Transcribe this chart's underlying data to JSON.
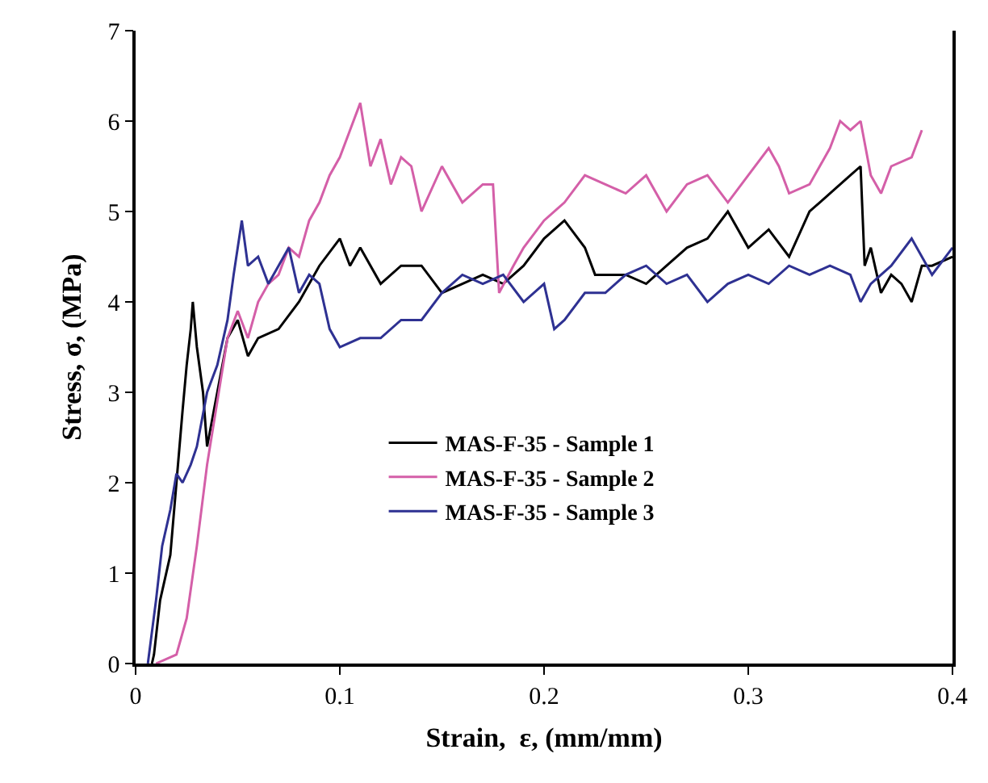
{
  "chart_data": {
    "type": "line",
    "xlabel": "Strain,  ε, (mm/mm)",
    "ylabel": "Stress, σ, (MPa)",
    "xlim": [
      0,
      0.4
    ],
    "xticks": [
      0,
      0.1,
      0.2,
      0.3,
      0.4
    ],
    "ylim": [
      0,
      7
    ],
    "yticks": [
      0,
      1,
      2,
      3,
      4,
      5,
      6,
      7
    ],
    "grid": false,
    "legend": "bottom left",
    "marker": "none",
    "line_style": "solid",
    "series": [
      {
        "name": "MAS-F-35 - Sample 1",
        "color": "#000000",
        "x": [
          0.008,
          0.009,
          0.012,
          0.017,
          0.02,
          0.023,
          0.025,
          0.027,
          0.028,
          0.03,
          0.033,
          0.035,
          0.04,
          0.045,
          0.05,
          0.055,
          0.06,
          0.07,
          0.08,
          0.09,
          0.1,
          0.105,
          0.11,
          0.12,
          0.13,
          0.14,
          0.15,
          0.16,
          0.17,
          0.18,
          0.19,
          0.2,
          0.21,
          0.22,
          0.225,
          0.24,
          0.25,
          0.26,
          0.27,
          0.28,
          0.29,
          0.3,
          0.31,
          0.32,
          0.33,
          0.34,
          0.35,
          0.355,
          0.357,
          0.36,
          0.365,
          0.37,
          0.375,
          0.38,
          0.385,
          0.39,
          0.4
        ],
        "values": [
          0,
          0.1,
          0.7,
          1.2,
          2.0,
          2.8,
          3.3,
          3.7,
          4.0,
          3.5,
          3.0,
          2.4,
          3.0,
          3.6,
          3.8,
          3.4,
          3.6,
          3.7,
          4.0,
          4.4,
          4.7,
          4.4,
          4.6,
          4.2,
          4.4,
          4.4,
          4.1,
          4.2,
          4.3,
          4.2,
          4.4,
          4.7,
          4.9,
          4.6,
          4.3,
          4.3,
          4.2,
          4.4,
          4.6,
          4.7,
          5.0,
          4.6,
          4.8,
          4.5,
          5.0,
          5.2,
          5.4,
          5.5,
          4.4,
          4.6,
          4.1,
          4.3,
          4.2,
          4.0,
          4.4,
          4.4,
          4.5
        ]
      },
      {
        "name": "MAS-F-35 - Sample 2",
        "color": "#d45fa8",
        "x": [
          0.01,
          0.02,
          0.025,
          0.03,
          0.035,
          0.04,
          0.045,
          0.05,
          0.055,
          0.06,
          0.065,
          0.07,
          0.075,
          0.08,
          0.085,
          0.09,
          0.095,
          0.1,
          0.105,
          0.11,
          0.115,
          0.12,
          0.125,
          0.13,
          0.135,
          0.14,
          0.15,
          0.16,
          0.17,
          0.175,
          0.178,
          0.185,
          0.19,
          0.2,
          0.21,
          0.22,
          0.23,
          0.24,
          0.25,
          0.26,
          0.27,
          0.28,
          0.29,
          0.3,
          0.31,
          0.315,
          0.32,
          0.33,
          0.34,
          0.345,
          0.35,
          0.355,
          0.36,
          0.365,
          0.37,
          0.38,
          0.385
        ],
        "values": [
          0,
          0.1,
          0.5,
          1.3,
          2.2,
          2.9,
          3.6,
          3.9,
          3.6,
          4.0,
          4.2,
          4.3,
          4.6,
          4.5,
          4.9,
          5.1,
          5.4,
          5.6,
          5.9,
          6.2,
          5.5,
          5.8,
          5.3,
          5.6,
          5.5,
          5.0,
          5.5,
          5.1,
          5.3,
          5.3,
          4.1,
          4.4,
          4.6,
          4.9,
          5.1,
          5.4,
          5.3,
          5.2,
          5.4,
          5.0,
          5.3,
          5.4,
          5.1,
          5.4,
          5.7,
          5.5,
          5.2,
          5.3,
          5.7,
          6.0,
          5.9,
          6.0,
          5.4,
          5.2,
          5.5,
          5.6,
          5.9
        ]
      },
      {
        "name": "MAS-F-35 - Sample 3",
        "color": "#2e3192",
        "x": [
          0.006,
          0.01,
          0.013,
          0.017,
          0.02,
          0.023,
          0.027,
          0.03,
          0.035,
          0.04,
          0.045,
          0.048,
          0.052,
          0.055,
          0.06,
          0.065,
          0.07,
          0.075,
          0.08,
          0.085,
          0.09,
          0.095,
          0.1,
          0.11,
          0.12,
          0.13,
          0.14,
          0.15,
          0.16,
          0.17,
          0.18,
          0.19,
          0.2,
          0.205,
          0.21,
          0.22,
          0.23,
          0.24,
          0.25,
          0.26,
          0.27,
          0.28,
          0.29,
          0.3,
          0.31,
          0.32,
          0.33,
          0.34,
          0.35,
          0.355,
          0.36,
          0.37,
          0.38,
          0.385,
          0.39,
          0.4
        ],
        "values": [
          0,
          0.7,
          1.3,
          1.7,
          2.1,
          2.0,
          2.2,
          2.4,
          3.0,
          3.3,
          3.8,
          4.3,
          4.9,
          4.4,
          4.5,
          4.2,
          4.4,
          4.6,
          4.1,
          4.3,
          4.2,
          3.7,
          3.5,
          3.6,
          3.6,
          3.8,
          3.8,
          4.1,
          4.3,
          4.2,
          4.3,
          4.0,
          4.2,
          3.7,
          3.8,
          4.1,
          4.1,
          4.3,
          4.4,
          4.2,
          4.3,
          4.0,
          4.2,
          4.3,
          4.2,
          4.4,
          4.3,
          4.4,
          4.3,
          4.0,
          4.2,
          4.4,
          4.7,
          4.5,
          4.3,
          4.6
        ]
      }
    ]
  }
}
